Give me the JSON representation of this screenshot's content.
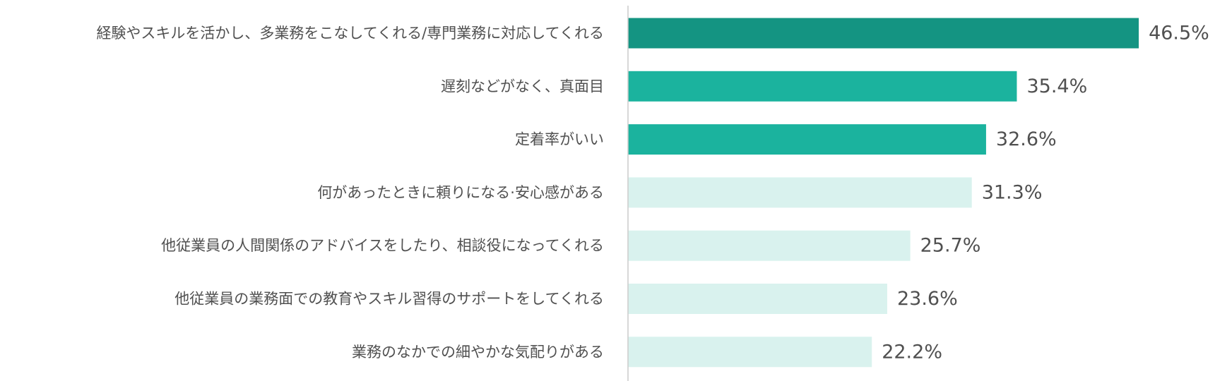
{
  "chart_data": {
    "type": "bar",
    "orientation": "horizontal",
    "categories": [
      "経験やスキルを活かし、多業務をこなしてくれる/専門業務に対応してくれる",
      "遅刻などがなく、真面目",
      "定着率がいい",
      "何があったときに頼りになる·安心感がある",
      "他従業員の人間関係のアドバイスをしたり、相談役になってくれる",
      "他従業員の業務面での教育やスキル習得のサポートをしてくれる",
      "業務のなかでの細やかな気配りがある"
    ],
    "values": [
      46.5,
      35.4,
      32.6,
      31.3,
      25.7,
      23.6,
      22.2
    ],
    "value_labels": [
      "46.5%",
      "35.4%",
      "32.6%",
      "31.3%",
      "25.7%",
      "23.6%",
      "22.2%"
    ],
    "bar_colors": [
      "#149482",
      "#1bb39e",
      "#1bb39e",
      "#d9f2ee",
      "#d9f2ee",
      "#d9f2ee",
      "#d9f2ee"
    ],
    "axis_line_color": "#cccccc",
    "label_color": "#505050",
    "title": "",
    "xlabel": "",
    "ylabel": "",
    "xlim": [
      0,
      50
    ],
    "grid": false,
    "legend": "none"
  }
}
